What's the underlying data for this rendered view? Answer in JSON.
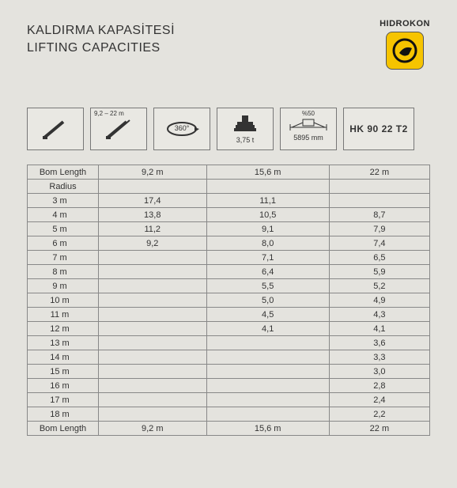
{
  "header": {
    "title_tr": "KALDIRMA KAPASİTESİ",
    "title_en": "LIFTING CAPACITIES",
    "brand": "HIDROKON",
    "logo_bg": "#f6c400"
  },
  "specs": {
    "boom_range": "9,2 – 22 m",
    "rotation": "360°",
    "counterweight": "3,75 t",
    "outrigger_pct": "%50",
    "outrigger_mm": "5895 mm",
    "model": "HK 90 22 T2"
  },
  "table": {
    "header_label": "Bom Length",
    "radius_label": "Radius",
    "footer_label": "Bom Length",
    "columns": [
      "9,2 m",
      "15,6 m",
      "22 m"
    ],
    "rows": [
      {
        "r": "3 m",
        "v": [
          "17,4",
          "11,1",
          ""
        ]
      },
      {
        "r": "4 m",
        "v": [
          "13,8",
          "10,5",
          "8,7"
        ]
      },
      {
        "r": "5 m",
        "v": [
          "11,2",
          "9,1",
          "7,9"
        ]
      },
      {
        "r": "6 m",
        "v": [
          "9,2",
          "8,0",
          "7,4"
        ]
      },
      {
        "r": "7 m",
        "v": [
          "",
          "7,1",
          "6,5"
        ]
      },
      {
        "r": "8 m",
        "v": [
          "",
          "6,4",
          "5,9"
        ]
      },
      {
        "r": "9 m",
        "v": [
          "",
          "5,5",
          "5,2"
        ]
      },
      {
        "r": "10 m",
        "v": [
          "",
          "5,0",
          "4,9"
        ]
      },
      {
        "r": "11 m",
        "v": [
          "",
          "4,5",
          "4,3"
        ]
      },
      {
        "r": "12 m",
        "v": [
          "",
          "4,1",
          "4,1"
        ]
      },
      {
        "r": "13 m",
        "v": [
          "",
          "",
          "3,6"
        ]
      },
      {
        "r": "14 m",
        "v": [
          "",
          "",
          "3,3"
        ]
      },
      {
        "r": "15 m",
        "v": [
          "",
          "",
          "3,0"
        ]
      },
      {
        "r": "16 m",
        "v": [
          "",
          "",
          "2,8"
        ]
      },
      {
        "r": "17 m",
        "v": [
          "",
          "",
          "2,4"
        ]
      },
      {
        "r": "18 m",
        "v": [
          "",
          "",
          "2,2"
        ]
      }
    ],
    "footer": [
      "9,2 m",
      "15,6 m",
      "22 m"
    ]
  }
}
